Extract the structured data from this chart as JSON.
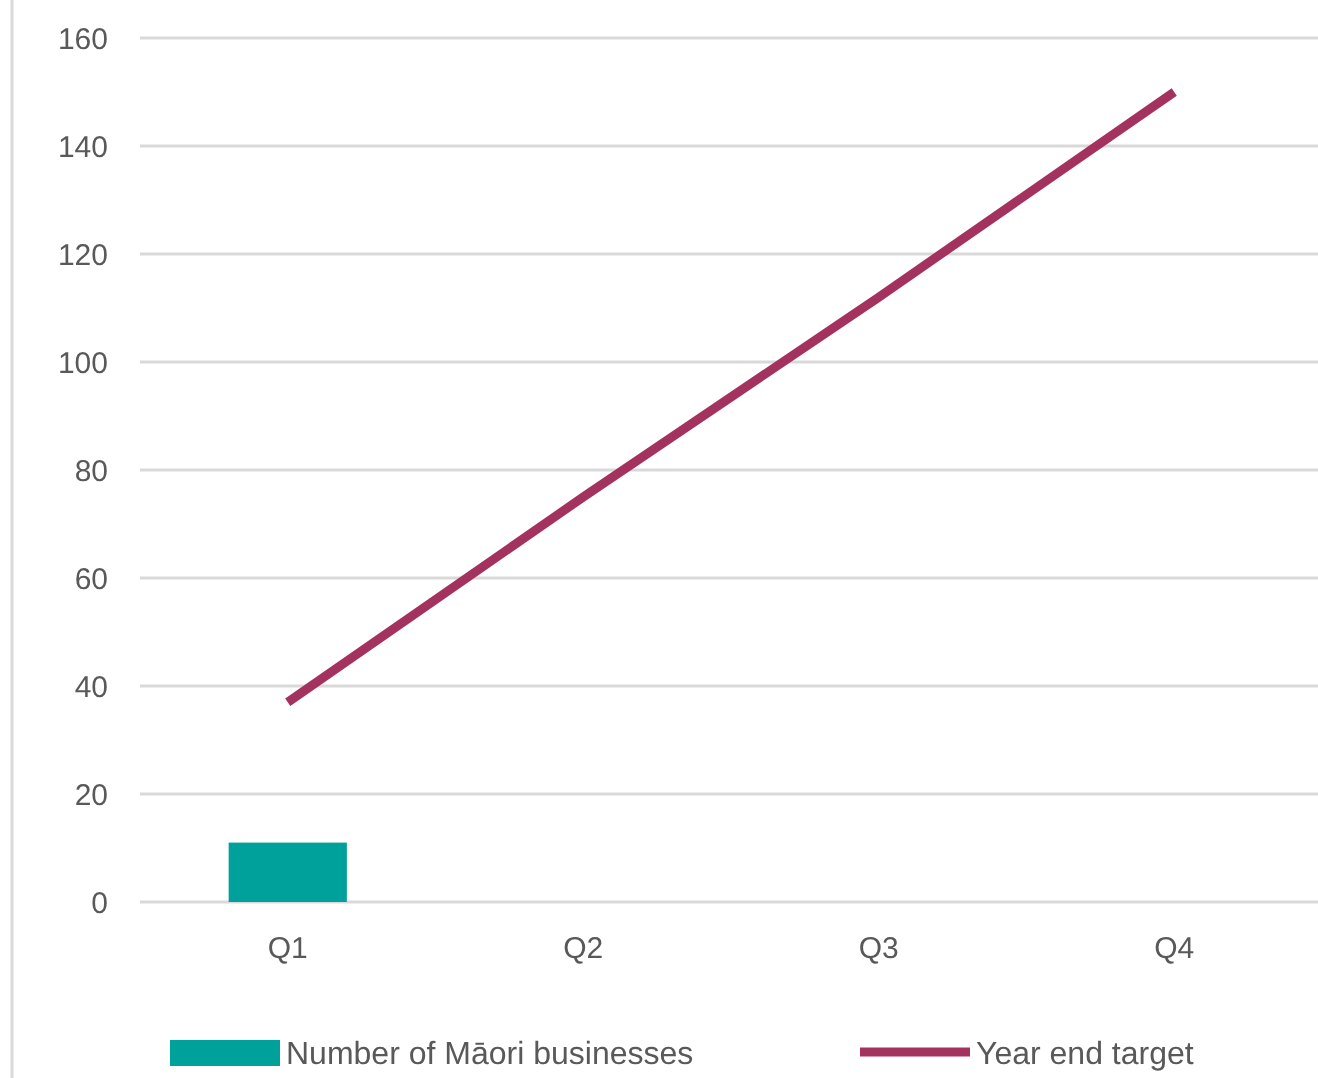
{
  "chart_data": {
    "type": "bar",
    "categories": [
      "Q1",
      "Q2",
      "Q3",
      "Q4"
    ],
    "series": [
      {
        "name": "Number of Māori businesses",
        "color": "#00a19a",
        "values": [
          11,
          null,
          null,
          null
        ]
      },
      {
        "name": "Year end target",
        "type": "line",
        "color": "#a3325e",
        "values": [
          37,
          75,
          112,
          150
        ]
      }
    ],
    "ylim": [
      0,
      160
    ],
    "yticks": [
      0,
      20,
      40,
      60,
      80,
      100,
      120,
      140,
      160
    ],
    "grid": "y",
    "legend": "bottom",
    "marker": "none"
  }
}
